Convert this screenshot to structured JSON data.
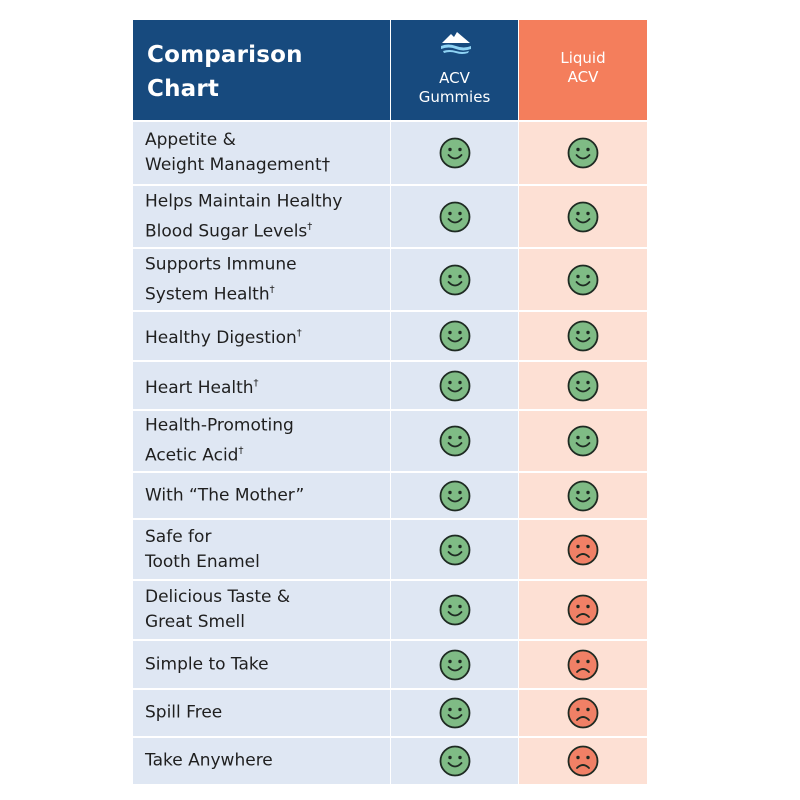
{
  "header": {
    "title": "Comparison\nChart",
    "col1": "ACV\nGummies",
    "col2": "Liquid\nACV"
  },
  "colors": {
    "navy": "#174a7e",
    "coral": "#f47e5c",
    "happy": "#7fbb85",
    "sad": "#f08066"
  },
  "rows": [
    {
      "feature": "Appetite &\nWeight Management†",
      "sup": "",
      "gummies": "happy",
      "liquid": "happy"
    },
    {
      "feature": "Helps Maintain Healthy\nBlood Sugar Levels",
      "sup": "†",
      "gummies": "happy",
      "liquid": "happy"
    },
    {
      "feature": "Supports Immune\nSystem Health",
      "sup": "†",
      "gummies": "happy",
      "liquid": "happy"
    },
    {
      "feature": "Healthy Digestion",
      "sup": "†",
      "gummies": "happy",
      "liquid": "happy"
    },
    {
      "feature": "Heart Health",
      "sup": "†",
      "gummies": "happy",
      "liquid": "happy"
    },
    {
      "feature": "Health-Promoting\nAcetic Acid",
      "sup": "†",
      "gummies": "happy",
      "liquid": "happy"
    },
    {
      "feature": "With “The Mother”",
      "sup": "",
      "gummies": "happy",
      "liquid": "happy"
    },
    {
      "feature": "Safe for\nTooth Enamel",
      "sup": "",
      "gummies": "happy",
      "liquid": "sad"
    },
    {
      "feature": "Delicious Taste &\nGreat Smell",
      "sup": "",
      "gummies": "happy",
      "liquid": "sad"
    },
    {
      "feature": "Simple to Take",
      "sup": "",
      "gummies": "happy",
      "liquid": "sad"
    },
    {
      "feature": "Spill Free",
      "sup": "",
      "gummies": "happy",
      "liquid": "sad"
    },
    {
      "feature": "Take Anywhere",
      "sup": "",
      "gummies": "happy",
      "liquid": "sad"
    }
  ]
}
